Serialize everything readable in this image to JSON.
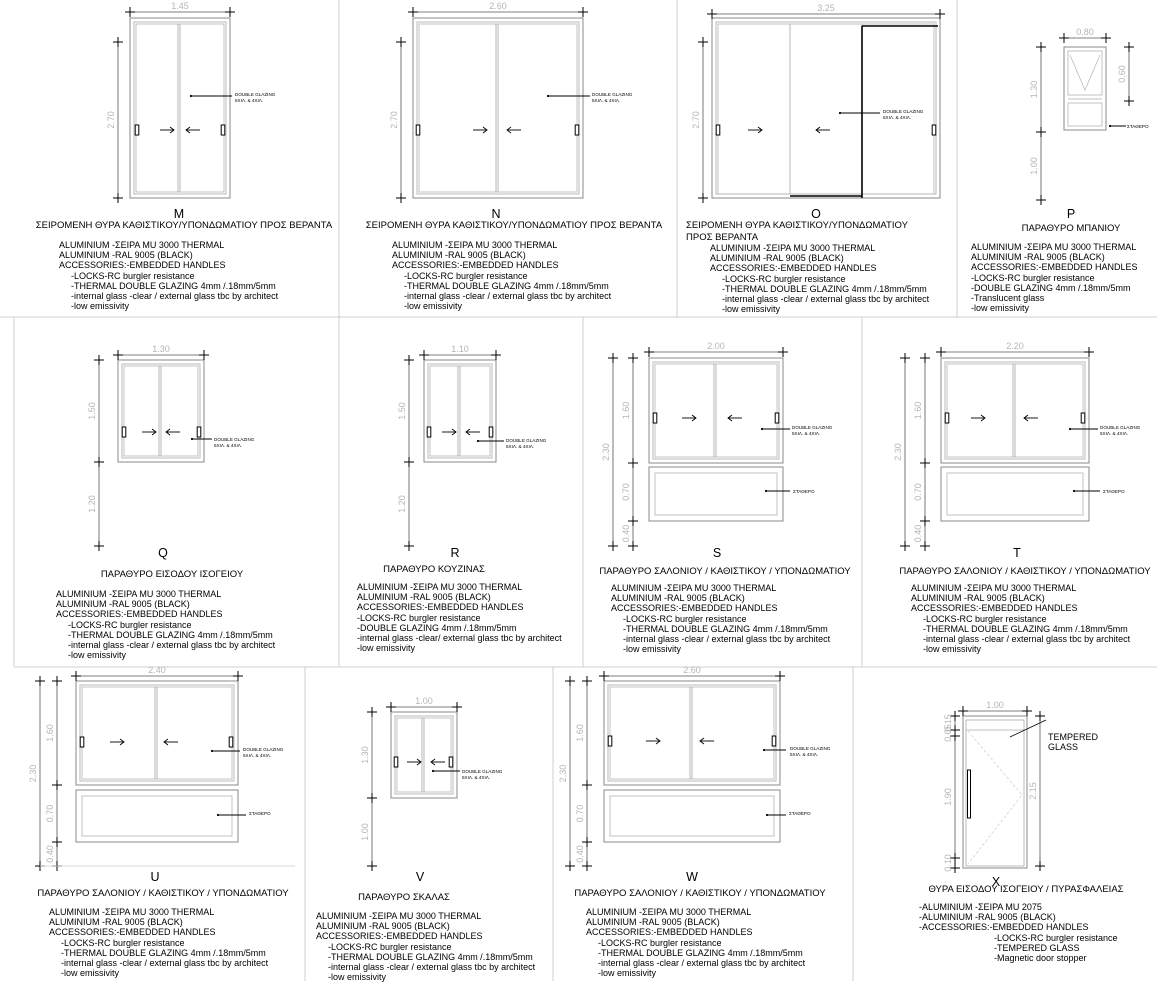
{
  "notes": {
    "double_glazing": [
      "DOUBLE GLAZING",
      "5ΧΙΛ. & 4ΧΙΛ."
    ],
    "fixed": "ΣΤΑΘΕΡΟ",
    "tempered": [
      "TEMPERED",
      "GLASS"
    ]
  },
  "panels": [
    {
      "id": "M",
      "letter": "M",
      "title": [
        "ΣΕΙΡΟΜΕΝΗ ΘΥΡΑ ΚΑΘΙΣΤΙΚΟΥ/ΥΠΟΝΔΩΜΑΤΙΟΥ ΠΡΟΣ ΒΕΡΑΝΤΑ"
      ],
      "dims": {
        "width": "1.45",
        "heights": [
          "2.70"
        ]
      },
      "spec": [
        "ALUMINIUM -ΣΕΙΡΑ MU 3000 THERMAL",
        "ALUMINIUM -RAL 9005 (BLACK)",
        "ACCESSORIES:-EMBEDDED HANDLES",
        "-LOCKS-RC burgler resistance",
        "-THERMAL DOUBLE GLAZING 4mm /.18mm/5mm",
        "-internal glass -clear / external glass tbc by architect",
        "-low emissivity"
      ]
    },
    {
      "id": "N",
      "letter": "N",
      "title": [
        "ΣΕΙΡΟΜΕΝΗ ΘΥΡΑ ΚΑΘΙΣΤΙΚΟΥ/ΥΠΟΝΔΩΜΑΤΙΟΥ ΠΡΟΣ ΒΕΡΑΝΤΑ"
      ],
      "dims": {
        "width": "2.60",
        "heights": [
          "2.70"
        ]
      },
      "spec": [
        "ALUMINIUM -ΣΕΙΡΑ MU 3000 THERMAL",
        "ALUMINIUM -RAL 9005 (BLACK)",
        "ACCESSORIES:-EMBEDDED HANDLES",
        "-LOCKS-RC burgler resistance",
        "-THERMAL DOUBLE GLAZING 4mm /.18mm/5mm",
        "-internal glass -clear / external glass tbc by architect",
        "-low emissivity"
      ]
    },
    {
      "id": "O",
      "letter": "O",
      "title": [
        "ΣΕΙΡΟΜΕΝΗ ΘΥΡΑ ΚΑΘΙΣΤΙΚΟΥ/ΥΠΟΝΔΩΜΑΤΙΟΥ",
        "ΠΡΟΣ ΒΕΡΑΝΤΑ"
      ],
      "dims": {
        "width": "3.25",
        "heights": [
          "2.70"
        ]
      },
      "spec": [
        "ALUMINIUM -ΣΕΙΡΑ MU 3000 THERMAL",
        "ALUMINIUM -RAL 9005 (BLACK)",
        "ACCESSORIES:-EMBEDDED HANDLES",
        "-LOCKS-RC burgler resistance",
        "-THERMAL DOUBLE GLAZING 4mm /.18mm/5mm",
        "-internal glass -clear / external glass tbc by architect",
        "-low emissivity"
      ]
    },
    {
      "id": "P",
      "letter": "P",
      "title": [
        "ΠΑΡΑΘΥΡΟ ΜΠΑΝΙΟΥ"
      ],
      "dims": {
        "width": "0.80",
        "heights": [
          "1.30",
          "1.00"
        ],
        "right": [
          "0.60"
        ]
      },
      "spec": [
        "ALUMINIUM -ΣΕΙΡΑ MU 3000 THERMAL",
        "ALUMINIUM -RAL 9005 (BLACK)",
        "ACCESSORIES:-EMBEDDED HANDLES",
        "-LOCKS-RC burgler resistance",
        "-DOUBLE GLAZING 4mm /.18mm/5mm",
        "-Translucent glass",
        "-low emissivity"
      ]
    },
    {
      "id": "Q",
      "letter": "Q",
      "title": [
        "ΠΑΡΑΘΥΡΟ ΕΙΣΟΔΟΥ ΙΣΟΓΕΙΟΥ"
      ],
      "dims": {
        "width": "1.30",
        "heights": [
          "1.50",
          "1.20"
        ]
      },
      "spec": [
        "ALUMINIUM -ΣΕΙΡΑ MU 3000 THERMAL",
        "ALUMINIUM -RAL 9005 (BLACK)",
        "ACCESSORIES:-EMBEDDED HANDLES",
        "-LOCKS-RC burgler resistance",
        "-THERMAL DOUBLE GLAZING 4mm /.18mm/5mm",
        "-internal glass -clear / external glass tbc by architect",
        "-low emissivity"
      ]
    },
    {
      "id": "R",
      "letter": "R",
      "title": [
        "ΠΑΡΑΘΥΡΟ ΚΟΥΖΙΝΑΣ"
      ],
      "dims": {
        "width": "1.10",
        "heights": [
          "1.50",
          "1.20"
        ]
      },
      "spec": [
        "ALUMINIUM -ΣΕΙΡΑ MU 3000 THERMAL",
        "ALUMINIUM -RAL 9005 (BLACK)",
        "ACCESSORIES:-EMBEDDED HANDLES",
        "-LOCKS-RC burgler resistance",
        "-DOUBLE GLAZING 4mm /.18mm/5mm",
        "-internal glass -clear/ external glass tbc by architect",
        "-low emissivity"
      ]
    },
    {
      "id": "S",
      "letter": "S",
      "title": [
        "ΠΑΡΑΘΥΡΟ ΣΑΛΟΝΙΟΥ / ΚΑΘΙΣΤΙΚΟΥ / ΥΠΟΝΔΩΜΑΤΙΟΥ"
      ],
      "dims": {
        "width": "2.00",
        "total": "2.30",
        "heights": [
          "1.60",
          "0.70",
          "0.40"
        ]
      },
      "spec": [
        "ALUMINIUM -ΣΕΙΡΑ MU 3000 THERMAL",
        "ALUMINIUM -RAL 9005 (BLACK)",
        "ACCESSORIES:-EMBEDDED HANDLES",
        "-LOCKS-RC burgler resistance",
        "-THERMAL DOUBLE GLAZING 4mm /.18mm/5mm",
        "-internal glass -clear / external glass tbc by architect",
        "-low emissivity"
      ]
    },
    {
      "id": "T",
      "letter": "T",
      "title": [
        "ΠΑΡΑΘΥΡΟ ΣΑΛΟΝΙΟΥ / ΚΑΘΙΣΤΙΚΟΥ / ΥΠΟΝΔΩΜΑΤΙΟΥ"
      ],
      "dims": {
        "width": "2.20",
        "total": "2.30",
        "heights": [
          "1.60",
          "0.70",
          "0.40"
        ]
      },
      "spec": [
        "ALUMINIUM -ΣΕΙΡΑ MU 3000 THERMAL",
        "ALUMINIUM -RAL 9005 (BLACK)",
        "ACCESSORIES:-EMBEDDED HANDLES",
        "-LOCKS-RC burgler resistance",
        "-THERMAL DOUBLE GLAZING 4mm /.18mm/5mm",
        "-internal glass -clear / external glass tbc by architect",
        "-low emissivity"
      ]
    },
    {
      "id": "U",
      "letter": "U",
      "title": [
        "ΠΑΡΑΘΥΡΟ ΣΑΛΟΝΙΟΥ / ΚΑΘΙΣΤΙΚΟΥ / ΥΠΟΝΔΩΜΑΤΙΟΥ"
      ],
      "dims": {
        "width": "2.40",
        "total": "2.30",
        "heights": [
          "1.60",
          "0.70",
          "0.40"
        ]
      },
      "spec": [
        "ALUMINIUM -ΣΕΙΡΑ MU 3000 THERMAL",
        "ALUMINIUM -RAL 9005 (BLACK)",
        "ACCESSORIES:-EMBEDDED HANDLES",
        "-LOCKS-RC burgler resistance",
        "-THERMAL DOUBLE GLAZING 4mm /.18mm/5mm",
        "-internal glass -clear / external glass tbc by architect",
        "-low emissivity"
      ]
    },
    {
      "id": "V",
      "letter": "V",
      "title": [
        "ΠΑΡΑΘΥΡΟ ΣΚΑΛΑΣ"
      ],
      "dims": {
        "width": "1.00",
        "heights": [
          "1.30",
          "1.00"
        ]
      },
      "spec": [
        "ALUMINIUM -ΣΕΙΡΑ MU 3000 THERMAL",
        "ALUMINIUM -RAL 9005 (BLACK)",
        "ACCESSORIES:-EMBEDDED HANDLES",
        "-LOCKS-RC burgler resistance",
        "-THERMAL DOUBLE GLAZING 4mm /.18mm/5mm",
        "-internal glass -clear / external glass tbc by architect",
        "-low emissivity"
      ]
    },
    {
      "id": "W",
      "letter": "W",
      "title": [
        "ΠΑΡΑΘΥΡΟ ΣΑΛΟΝΙΟΥ / ΚΑΘΙΣΤΙΚΟΥ / ΥΠΟΝΔΩΜΑΤΙΟΥ"
      ],
      "dims": {
        "width": "2.60",
        "total": "2.30",
        "heights": [
          "1.60",
          "0.70",
          "0.40"
        ]
      },
      "spec": [
        "ALUMINIUM -ΣΕΙΡΑ MU 3000 THERMAL",
        "ALUMINIUM -RAL 9005 (BLACK)",
        "ACCESSORIES:-EMBEDDED HANDLES",
        "-LOCKS-RC burgler resistance",
        "-THERMAL DOUBLE GLAZING 4mm /.18mm/5mm",
        "-internal glass -clear / external glass tbc by architect",
        "-low emissivity"
      ]
    },
    {
      "id": "X",
      "letter": "X",
      "title": [
        "ΘΥΡΑ ΕΙΣΟΔΟΥ ΙΣΟΓΕΙΟΥ / ΠΥΡΑΣΦΑΛΕΙΑΣ"
      ],
      "dims": {
        "width": "1.00",
        "heights": [
          "0.15",
          "0.05",
          "1.90",
          "0.10"
        ],
        "right": [
          "2.15"
        ]
      },
      "spec": [
        "-ALUMINIUM -ΣΕΙΡΑ MU 2075",
        "-ALUMINIUM -RAL 9005 (BLACK)",
        "-ACCESSORIES:-EMBEDDED HANDLES",
        "-LOCKS-RC burgler resistance",
        "-TEMPERED GLASS",
        "-Magnetic door stopper"
      ]
    }
  ]
}
